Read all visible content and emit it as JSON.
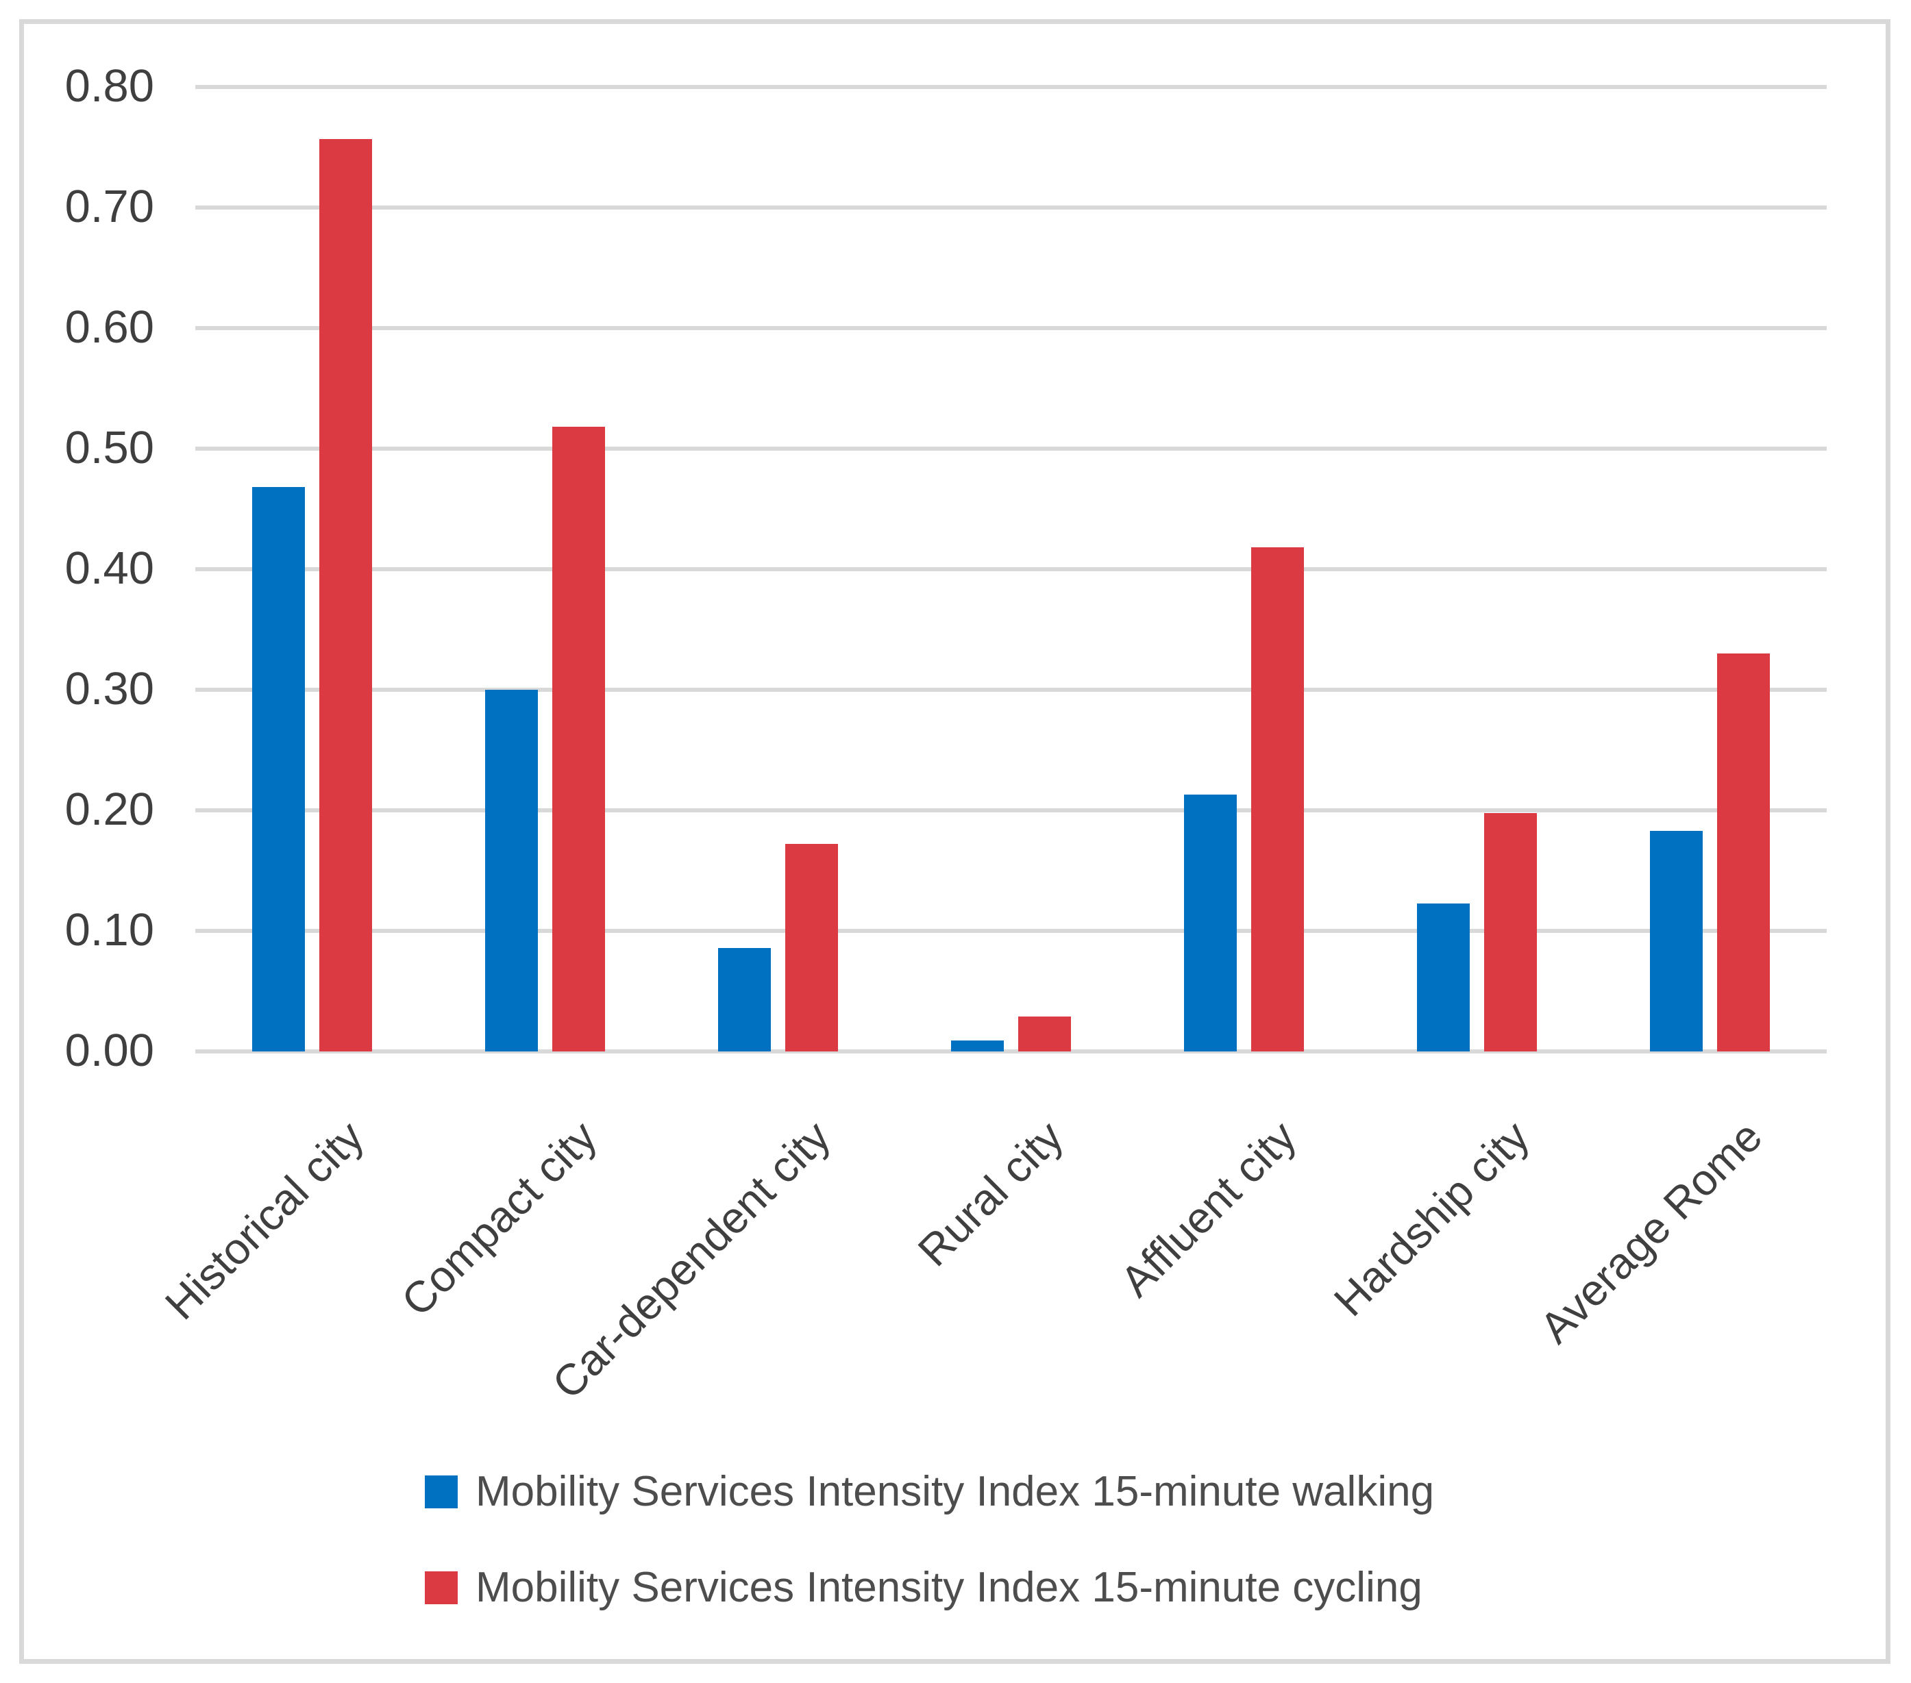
{
  "chart_data": {
    "type": "bar",
    "title": "",
    "categories": [
      "Historical city",
      "Compact city",
      "Car-dependent city",
      "Rural city",
      "Affluent city",
      "Hardship city",
      "Average Rome"
    ],
    "series": [
      {
        "name": "Mobility Services Intensity Index 15-minute walking",
        "key": "walking",
        "color": "#0070C0",
        "values": [
          0.468,
          0.3,
          0.086,
          0.009,
          0.213,
          0.123,
          0.183
        ]
      },
      {
        "name": "Mobility Services Intensity Index 15-minute cycling",
        "key": "cycling",
        "color": "#DC3A43",
        "values": [
          0.757,
          0.518,
          0.172,
          0.029,
          0.418,
          0.198,
          0.33
        ]
      }
    ],
    "xlabel": "",
    "ylabel": "",
    "ylim": [
      0.0,
      0.8
    ],
    "ytick_step": 0.1,
    "ytick_labels": [
      "0.80",
      "0.70",
      "0.60",
      "0.50",
      "0.40",
      "0.30",
      "0.20",
      "0.10",
      "0.00"
    ],
    "grid": true,
    "gridline_color": "#D9D9D9",
    "axis_text_color": "#3F3F3F",
    "legend_text_color": "#4D4D4D",
    "legend_position": "bottom",
    "frame_border_color": "#D9D9D9",
    "background": "#FFFFFF"
  }
}
